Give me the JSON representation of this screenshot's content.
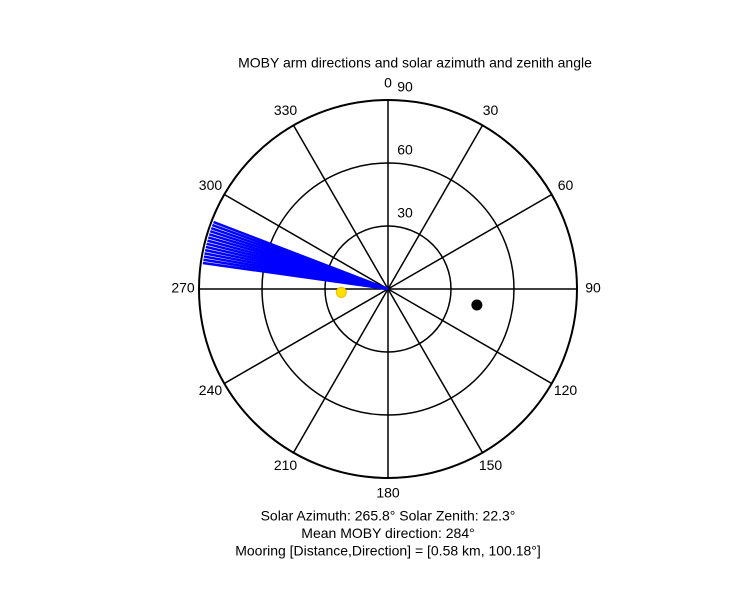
{
  "chart_data": {
    "type": "polar",
    "title": "MOBY arm directions and solar azimuth and zenith angle",
    "rlim": [
      0,
      90
    ],
    "rticks": [
      30,
      60,
      90
    ],
    "thetaticks": [
      0,
      30,
      60,
      90,
      120,
      150,
      180,
      210,
      240,
      270,
      300,
      330
    ],
    "arm_directions": {
      "color": "#0000ff",
      "values": [
        278,
        279,
        280,
        281,
        282,
        283,
        284,
        285,
        286,
        287,
        288,
        289,
        290,
        291
      ]
    },
    "solar": {
      "azimuth": 265.8,
      "zenith": 22.3,
      "color": "#ffe000"
    },
    "mooring": {
      "direction": 100.18,
      "r": 43,
      "color": "#000000"
    },
    "captions": [
      "Solar Azimuth: 265.8° Solar Zenith: 22.3°",
      "Mean MOBY direction: 284°",
      "Mooring [Distance,Direction] = [0.58 km, 100.18°]"
    ]
  }
}
